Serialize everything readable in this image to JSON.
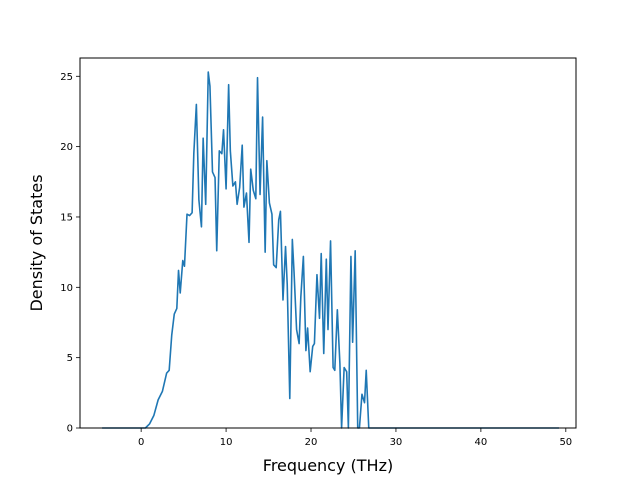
{
  "chart_data": {
    "type": "line",
    "xlabel": "Frequency (THz)",
    "ylabel": "Density of States",
    "xlim": [
      -7.2,
      51.2
    ],
    "ylim": [
      0,
      26.3
    ],
    "xticks": [
      0,
      10,
      20,
      30,
      40,
      50
    ],
    "yticks": [
      0,
      5,
      10,
      15,
      20,
      25
    ],
    "grid": false,
    "line_color": "#1f77b4",
    "series": [
      {
        "x": [
          -4.6,
          -3,
          -1,
          0.5,
          1.0,
          1.5,
          2.0,
          2.5,
          3.0,
          3.3,
          3.6,
          3.9,
          4.2,
          4.4,
          4.6,
          4.9,
          5.1,
          5.4,
          5.7,
          6.0,
          6.2,
          6.5,
          6.8,
          7.1,
          7.3,
          7.6,
          7.9,
          8.1,
          8.4,
          8.7,
          8.9,
          9.2,
          9.5,
          9.7,
          10.0,
          10.3,
          10.5,
          10.8,
          11.1,
          11.3,
          11.6,
          11.9,
          12.1,
          12.4,
          12.7,
          12.9,
          13.2,
          13.5,
          13.7,
          14.0,
          14.3,
          14.6,
          14.8,
          15.1,
          15.4,
          15.6,
          15.9,
          16.2,
          16.4,
          16.7,
          17.0,
          17.2,
          17.5,
          17.8,
          18.0,
          18.3,
          18.6,
          18.8,
          19.1,
          19.4,
          19.6,
          19.9,
          20.2,
          20.4,
          20.7,
          21.0,
          21.2,
          21.5,
          21.8,
          22.0,
          22.3,
          22.6,
          22.8,
          23.1,
          23.4,
          23.6,
          23.9,
          24.2,
          24.4,
          24.7,
          24.9,
          25.2,
          25.5,
          25.7,
          26.0,
          26.3,
          26.5,
          26.8,
          27.1,
          27.3,
          27.6,
          30,
          40,
          49.2
        ],
        "y": [
          0,
          0,
          0,
          0,
          0.3,
          0.9,
          2.0,
          2.6,
          3.9,
          4.1,
          6.6,
          8.1,
          8.5,
          11.2,
          9.6,
          11.9,
          11.5,
          15.2,
          15.1,
          15.3,
          19.5,
          23.0,
          16.2,
          14.3,
          20.6,
          15.9,
          25.3,
          24.3,
          18.2,
          17.8,
          12.6,
          19.7,
          19.5,
          21.2,
          17.0,
          24.4,
          19.7,
          17.2,
          17.5,
          15.9,
          17.1,
          20.1,
          15.7,
          16.7,
          13.2,
          18.4,
          16.9,
          16.3,
          24.9,
          16.6,
          22.1,
          12.5,
          19.0,
          16.0,
          15.2,
          11.6,
          11.4,
          14.8,
          15.4,
          9.1,
          12.9,
          10.2,
          2.1,
          13.4,
          11.1,
          7.0,
          6.0,
          9.3,
          12.2,
          5.5,
          7.1,
          4.0,
          5.8,
          6.0,
          10.9,
          7.8,
          12.4,
          5.3,
          12.0,
          7.0,
          13.3,
          4.3,
          4.1,
          8.4,
          4.6,
          0,
          4.3,
          4.0,
          0,
          12.2,
          6.1,
          12.6,
          0,
          0,
          2.4,
          1.8,
          4.1,
          0,
          0,
          0,
          0,
          0,
          0,
          0
        ]
      }
    ]
  }
}
